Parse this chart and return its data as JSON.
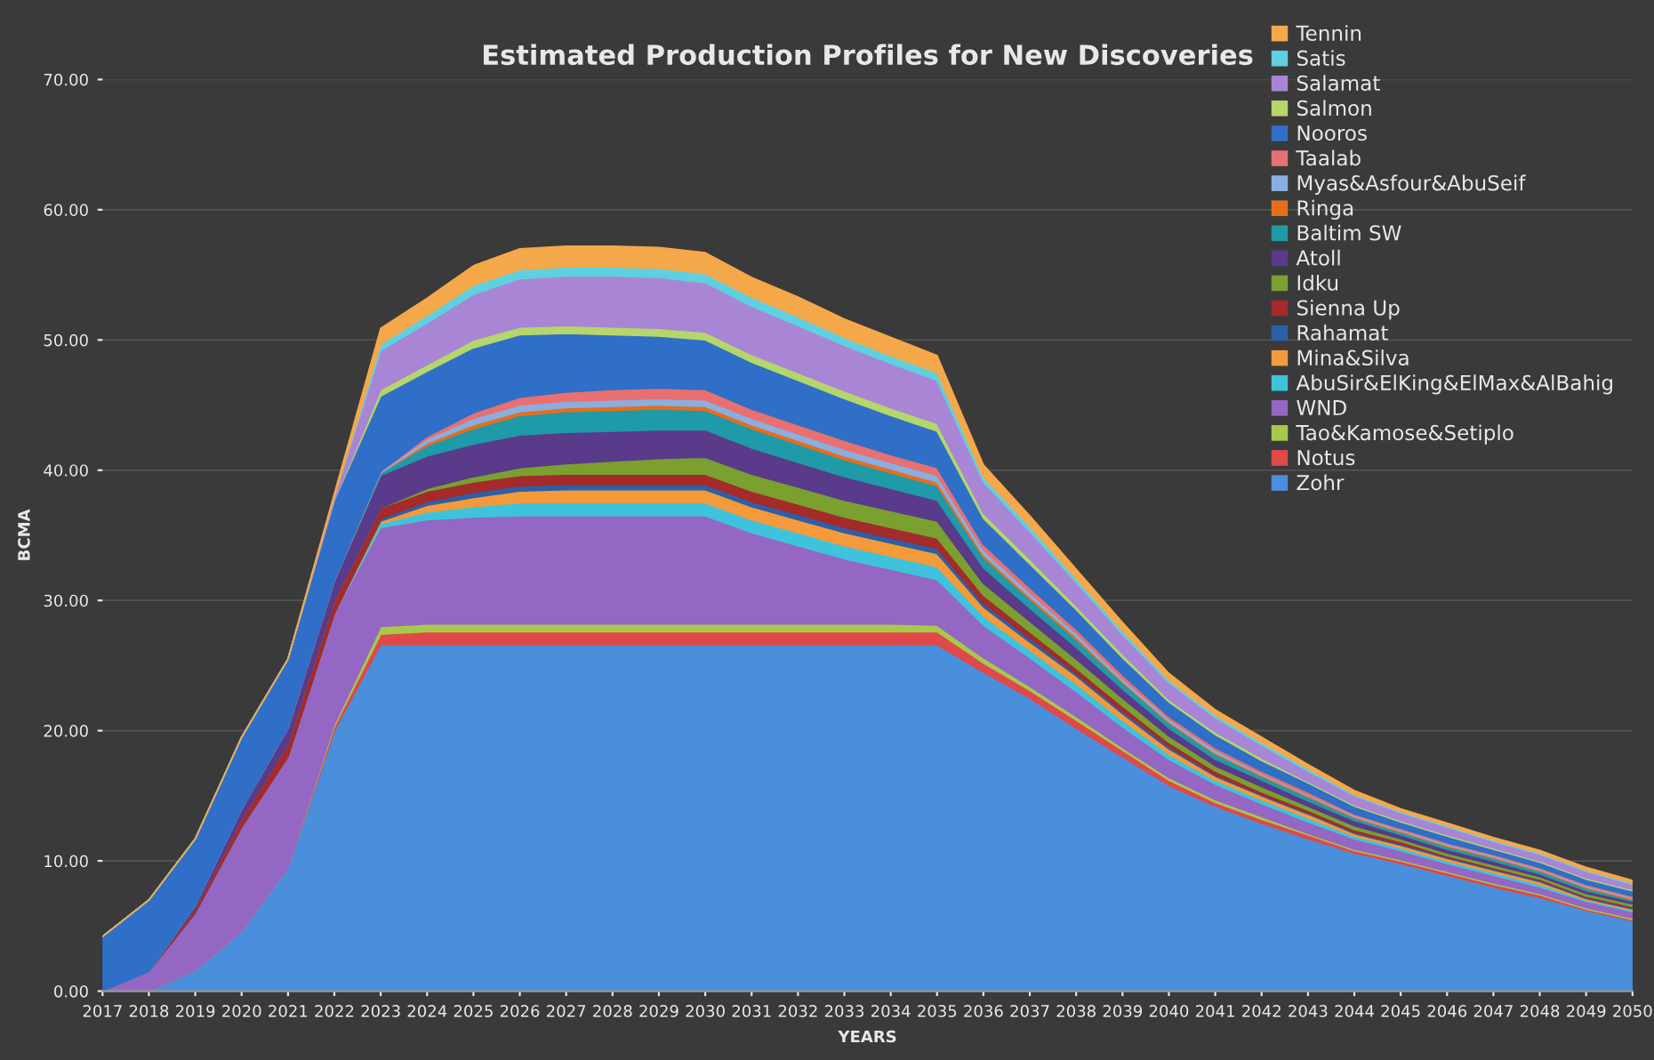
{
  "chart_data": {
    "type": "area",
    "stacked": true,
    "title": "Estimated Production Profiles for New Discoveries",
    "xlabel": "YEARS",
    "ylabel": "BCMA",
    "categories": [
      "2017",
      "2018",
      "2019",
      "2020",
      "2021",
      "2022",
      "2023",
      "2024",
      "2025",
      "2026",
      "2027",
      "2028",
      "2029",
      "2030",
      "2031",
      "2032",
      "2033",
      "2034",
      "2035",
      "2036",
      "2037",
      "2038",
      "2039",
      "2040",
      "2041",
      "2042",
      "2043",
      "2044",
      "2045",
      "2046",
      "2047",
      "2048",
      "2049",
      "2050"
    ],
    "ylim": [
      0,
      70
    ],
    "yticks": [
      {
        "value": 0,
        "label": "0.00"
      },
      {
        "value": 10,
        "label": "10.00"
      },
      {
        "value": 20,
        "label": "20.00"
      },
      {
        "value": 30,
        "label": "30.00"
      },
      {
        "value": 40,
        "label": "40.00"
      },
      {
        "value": 50,
        "label": "50.00"
      },
      {
        "value": 60,
        "label": "60.00"
      },
      {
        "value": 70,
        "label": "70.00"
      }
    ],
    "grid": "y",
    "legend": "top right",
    "series": [
      {
        "name": "Zohr",
        "color": "#4a8fdc",
        "values": [
          0,
          0,
          1.6,
          4.6,
          9.5,
          20,
          26.6,
          26.6,
          26.6,
          26.6,
          26.6,
          26.6,
          26.6,
          26.6,
          26.6,
          26.6,
          26.6,
          26.6,
          26.6,
          24.5,
          22.5,
          20.2,
          18.0,
          15.8,
          14.2,
          12.9,
          11.7,
          10.6,
          9.8,
          8.9,
          8.0,
          7.2,
          6.2,
          5.4
        ]
      },
      {
        "name": "Notus",
        "color": "#e0484a",
        "values": [
          0,
          0,
          0,
          0,
          0,
          0.3,
          0.8,
          1.0,
          1.0,
          1.0,
          1.0,
          1.0,
          1.0,
          1.0,
          1.0,
          1.0,
          1.0,
          1.0,
          1.0,
          0.7,
          0.6,
          0.6,
          0.5,
          0.4,
          0.3,
          0.3,
          0.3,
          0.2,
          0.2,
          0.2,
          0.2,
          0.2,
          0.1,
          0.1
        ]
      },
      {
        "name": "Tao&Kamose&Setiplo",
        "color": "#a8c84c",
        "values": [
          0,
          0,
          0,
          0,
          0,
          0.2,
          0.6,
          0.6,
          0.6,
          0.6,
          0.6,
          0.6,
          0.6,
          0.6,
          0.6,
          0.6,
          0.6,
          0.6,
          0.5,
          0.4,
          0.3,
          0.3,
          0.2,
          0.2,
          0.2,
          0.2,
          0.1,
          0.1,
          0.1,
          0.1,
          0.1,
          0.1,
          0.1,
          0.1
        ]
      },
      {
        "name": "WND",
        "color": "#9467c4",
        "values": [
          0,
          1.5,
          4.4,
          8,
          8.5,
          8.5,
          7.6,
          8.0,
          8.2,
          8.3,
          8.3,
          8.3,
          8.3,
          8.3,
          7.0,
          6.0,
          5.0,
          4.2,
          3.5,
          2.5,
          2.2,
          1.9,
          1.6,
          1.4,
          1.2,
          1.0,
          0.9,
          0.8,
          0.7,
          0.6,
          0.6,
          0.5,
          0.5,
          0.5
        ]
      },
      {
        "name": "AbuSir&ElKing&ElMax&AlBahig",
        "color": "#3fc3dc",
        "values": [
          0,
          0,
          0,
          0,
          0,
          0,
          0.3,
          0.6,
          0.8,
          1.0,
          1.0,
          1.0,
          1.0,
          1.0,
          1.0,
          1.0,
          1.0,
          1.0,
          1.0,
          0.7,
          0.6,
          0.6,
          0.5,
          0.4,
          0.3,
          0.3,
          0.3,
          0.2,
          0.2,
          0.2,
          0.2,
          0.2,
          0.1,
          0.1
        ]
      },
      {
        "name": "Mina&Silva",
        "color": "#f39a3a",
        "values": [
          0,
          0,
          0,
          0,
          0,
          0,
          0.2,
          0.5,
          0.7,
          0.9,
          1.0,
          1.0,
          1.0,
          1.0,
          1.0,
          1.0,
          1.0,
          1.0,
          1.0,
          0.7,
          0.6,
          0.6,
          0.5,
          0.4,
          0.3,
          0.3,
          0.3,
          0.2,
          0.2,
          0.2,
          0.2,
          0.2,
          0.1,
          0.1
        ]
      },
      {
        "name": "Rahamat",
        "color": "#2d5fa8",
        "values": [
          0,
          0,
          0,
          0,
          0,
          0,
          0.2,
          0.3,
          0.4,
          0.4,
          0.4,
          0.4,
          0.4,
          0.4,
          0.4,
          0.4,
          0.4,
          0.4,
          0.4,
          0.3,
          0.3,
          0.2,
          0.2,
          0.2,
          0.1,
          0.1,
          0.1,
          0.1,
          0.1,
          0.1,
          0.1,
          0.1,
          0.1,
          0.1
        ]
      },
      {
        "name": "Sienna Up",
        "color": "#a52a2a",
        "values": [
          0,
          0,
          0.3,
          0.6,
          1.0,
          1.0,
          0.8,
          0.8,
          0.8,
          0.8,
          0.8,
          0.8,
          0.8,
          0.8,
          0.8,
          0.8,
          0.8,
          0.8,
          0.8,
          0.6,
          0.5,
          0.4,
          0.4,
          0.3,
          0.3,
          0.2,
          0.2,
          0.2,
          0.2,
          0.1,
          0.1,
          0.1,
          0.1,
          0.1
        ]
      },
      {
        "name": "Idku",
        "color": "#7aa030",
        "values": [
          0,
          0,
          0,
          0,
          0,
          0,
          0,
          0.2,
          0.4,
          0.6,
          0.8,
          1.0,
          1.2,
          1.3,
          1.3,
          1.3,
          1.3,
          1.3,
          1.3,
          0.9,
          0.8,
          0.7,
          0.6,
          0.5,
          0.4,
          0.4,
          0.3,
          0.3,
          0.2,
          0.2,
          0.2,
          0.2,
          0.2,
          0.2
        ]
      },
      {
        "name": "Atoll",
        "color": "#5a3a8a",
        "values": [
          0,
          0,
          0.3,
          0.8,
          1.2,
          1.5,
          2.5,
          2.5,
          2.5,
          2.5,
          2.4,
          2.3,
          2.2,
          2.1,
          2.0,
          1.9,
          1.8,
          1.7,
          1.6,
          1.2,
          1.0,
          0.9,
          0.7,
          0.6,
          0.5,
          0.5,
          0.4,
          0.4,
          0.3,
          0.3,
          0.3,
          0.2,
          0.2,
          0.2
        ]
      },
      {
        "name": "Baltim SW",
        "color": "#1f9aa8",
        "values": [
          0,
          0,
          0,
          0,
          0,
          0,
          0.2,
          0.8,
          1.2,
          1.5,
          1.6,
          1.6,
          1.6,
          1.5,
          1.5,
          1.4,
          1.3,
          1.2,
          1.1,
          0.8,
          0.7,
          0.6,
          0.5,
          0.4,
          0.4,
          0.3,
          0.3,
          0.2,
          0.2,
          0.2,
          0.2,
          0.2,
          0.2,
          0.1
        ]
      },
      {
        "name": "Ringa",
        "color": "#e56e1c",
        "values": [
          0,
          0,
          0,
          0,
          0,
          0,
          0,
          0.2,
          0.3,
          0.3,
          0.3,
          0.3,
          0.3,
          0.3,
          0.3,
          0.3,
          0.3,
          0.3,
          0.3,
          0.2,
          0.2,
          0.2,
          0.1,
          0.1,
          0.1,
          0.1,
          0.1,
          0.1,
          0.1,
          0.1,
          0.1,
          0.1,
          0.1,
          0.1
        ]
      },
      {
        "name": "Myas&Asfour&AbuSeif",
        "color": "#8aaee0",
        "values": [
          0,
          0,
          0,
          0,
          0,
          0,
          0.1,
          0.3,
          0.5,
          0.5,
          0.5,
          0.5,
          0.5,
          0.5,
          0.5,
          0.5,
          0.5,
          0.5,
          0.5,
          0.4,
          0.3,
          0.3,
          0.2,
          0.2,
          0.2,
          0.1,
          0.1,
          0.1,
          0.1,
          0.1,
          0.1,
          0.1,
          0.1,
          0.1
        ]
      },
      {
        "name": "Taalab",
        "color": "#e87070",
        "values": [
          0,
          0,
          0,
          0,
          0,
          0,
          0,
          0.2,
          0.4,
          0.6,
          0.7,
          0.8,
          0.8,
          0.8,
          0.7,
          0.7,
          0.7,
          0.6,
          0.6,
          0.4,
          0.4,
          0.3,
          0.3,
          0.2,
          0.2,
          0.2,
          0.2,
          0.1,
          0.1,
          0.1,
          0.1,
          0.1,
          0.1,
          0.1
        ]
      },
      {
        "name": "Nooros",
        "color": "#2f6fc8",
        "values": [
          4.2,
          5.5,
          5.1,
          5.5,
          5.3,
          6.2,
          5.8,
          5.0,
          5.0,
          4.8,
          4.5,
          4.2,
          4.0,
          3.8,
          3.6,
          3.4,
          3.2,
          3.0,
          2.8,
          2.0,
          1.8,
          1.5,
          1.3,
          1.1,
          1.0,
          0.8,
          0.7,
          0.6,
          0.5,
          0.5,
          0.4,
          0.4,
          0.4,
          0.4
        ]
      },
      {
        "name": "Salmon",
        "color": "#b5d66a",
        "values": [
          0,
          0,
          0,
          0,
          0,
          0,
          0.5,
          0.5,
          0.6,
          0.6,
          0.6,
          0.6,
          0.6,
          0.6,
          0.6,
          0.6,
          0.6,
          0.6,
          0.6,
          0.4,
          0.4,
          0.3,
          0.3,
          0.2,
          0.2,
          0.2,
          0.1,
          0.1,
          0.1,
          0.1,
          0.1,
          0.1,
          0.1,
          0.1
        ]
      },
      {
        "name": "Salamat",
        "color": "#a985d6",
        "values": [
          0,
          0,
          0,
          0,
          0,
          0.3,
          3.0,
          3.2,
          3.5,
          3.7,
          3.8,
          3.9,
          3.9,
          3.8,
          3.7,
          3.6,
          3.5,
          3.4,
          3.3,
          2.4,
          2.1,
          1.8,
          1.5,
          1.3,
          1.1,
          1.0,
          0.8,
          0.7,
          0.6,
          0.6,
          0.5,
          0.5,
          0.5,
          0.4
        ]
      },
      {
        "name": "Satis",
        "color": "#5fd0e0",
        "values": [
          0,
          0,
          0,
          0,
          0,
          0,
          0.5,
          0.6,
          0.7,
          0.7,
          0.7,
          0.7,
          0.7,
          0.7,
          0.7,
          0.7,
          0.6,
          0.6,
          0.6,
          0.4,
          0.4,
          0.3,
          0.3,
          0.2,
          0.2,
          0.2,
          0.2,
          0.1,
          0.1,
          0.1,
          0.1,
          0.1,
          0.1,
          0.1
        ]
      },
      {
        "name": "Tennin",
        "color": "#f5a84a",
        "values": [
          0,
          0,
          0,
          0,
          0,
          0.2,
          1.2,
          1.3,
          1.5,
          1.6,
          1.6,
          1.6,
          1.6,
          1.6,
          1.5,
          1.5,
          1.4,
          1.4,
          1.3,
          0.9,
          0.8,
          0.7,
          0.6,
          0.5,
          0.4,
          0.4,
          0.3,
          0.3,
          0.2,
          0.2,
          0.2,
          0.2,
          0.2,
          0.2
        ]
      }
    ]
  }
}
